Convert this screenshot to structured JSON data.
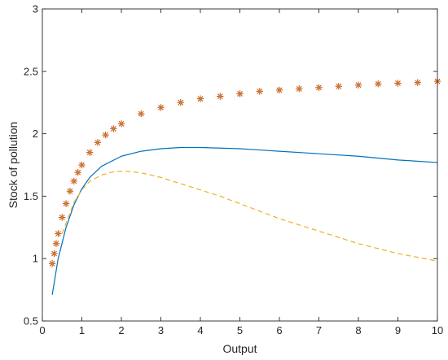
{
  "chart_data": {
    "type": "line",
    "title": "",
    "xlabel": "Output",
    "ylabel": "Stock of pollution",
    "xlim": [
      0,
      10
    ],
    "ylim": [
      0.5,
      3
    ],
    "xticks": [
      0,
      1,
      2,
      3,
      4,
      5,
      6,
      7,
      8,
      9,
      10
    ],
    "yticks": [
      0.5,
      1,
      1.5,
      2,
      2.5,
      3
    ],
    "xtick_labels": [
      "0",
      "1",
      "2",
      "3",
      "4",
      "5",
      "6",
      "7",
      "8",
      "9",
      "10"
    ],
    "ytick_labels": [
      "0.5",
      "1",
      "1.5",
      "2",
      "2.5",
      "3"
    ],
    "grid": false,
    "legend": "none",
    "series": [
      {
        "style": "markers",
        "marker": "asterisk",
        "color": "#d95319",
        "marker_fill": "#77ac30",
        "x": [
          0.25,
          0.3,
          0.35,
          0.4,
          0.5,
          0.6,
          0.7,
          0.8,
          0.9,
          1.0,
          1.2,
          1.4,
          1.6,
          1.8,
          2.0,
          2.5,
          3.0,
          3.5,
          4.0,
          4.5,
          5.0,
          5.5,
          6.0,
          6.5,
          7.0,
          7.5,
          8.0,
          8.5,
          9.0,
          9.5,
          10.0
        ],
        "y": [
          0.96,
          1.04,
          1.12,
          1.2,
          1.33,
          1.44,
          1.54,
          1.62,
          1.69,
          1.75,
          1.85,
          1.93,
          1.99,
          2.04,
          2.08,
          2.16,
          2.21,
          2.25,
          2.28,
          2.3,
          2.32,
          2.34,
          2.35,
          2.36,
          2.37,
          2.38,
          2.39,
          2.4,
          2.405,
          2.41,
          2.42
        ]
      },
      {
        "style": "solid",
        "color": "#0072bd",
        "x": [
          0.25,
          0.4,
          0.6,
          0.8,
          1.0,
          1.2,
          1.5,
          2.0,
          2.5,
          3.0,
          3.5,
          4.0,
          4.5,
          5.0,
          5.5,
          6.0,
          7.0,
          8.0,
          9.0,
          10.0
        ],
        "y": [
          0.71,
          1.0,
          1.25,
          1.43,
          1.56,
          1.65,
          1.74,
          1.82,
          1.86,
          1.88,
          1.89,
          1.89,
          1.885,
          1.88,
          1.87,
          1.86,
          1.84,
          1.82,
          1.79,
          1.77
        ]
      },
      {
        "style": "dashed",
        "color": "#edb120",
        "x": [
          0.5,
          0.8,
          1.0,
          1.2,
          1.5,
          1.8,
          2.0,
          2.3,
          2.6,
          3.0,
          3.5,
          4.0,
          4.5,
          5.0,
          5.5,
          6.0,
          7.0,
          8.0,
          9.0,
          10.0
        ],
        "y": [
          1.2,
          1.45,
          1.55,
          1.62,
          1.67,
          1.695,
          1.7,
          1.695,
          1.68,
          1.65,
          1.6,
          1.55,
          1.5,
          1.44,
          1.38,
          1.32,
          1.22,
          1.12,
          1.04,
          0.98
        ]
      }
    ]
  }
}
